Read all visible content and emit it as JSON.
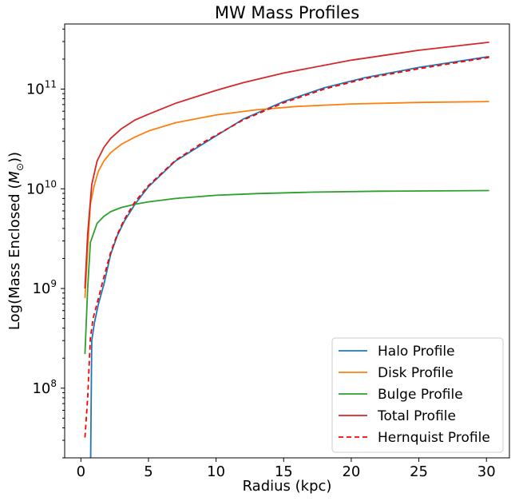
{
  "chart_data": {
    "type": "line",
    "title": "MW Mass Profiles",
    "xlabel": "Radius (kpc)",
    "ylabel_prefix": "Log(Mass Enclosed (",
    "ylabel_symbol": "M",
    "ylabel_subscript": "⊙",
    "ylabel_suffix": "))",
    "xlim": [
      -1.2,
      31.7
    ],
    "ylim": [
      20000000.0,
      450000000000.0
    ],
    "yscale": "log",
    "x_ticks": [
      0,
      5,
      10,
      15,
      20,
      25,
      30
    ],
    "x_tick_labels": [
      "0",
      "5",
      "10",
      "15",
      "20",
      "25",
      "30"
    ],
    "y_ticks": [
      {
        "value": 100000000.0,
        "base": "10",
        "exp": "8"
      },
      {
        "value": 1000000000.0,
        "base": "10",
        "exp": "9"
      },
      {
        "value": 10000000000.0,
        "base": "10",
        "exp": "10"
      },
      {
        "value": 100000000000.0,
        "base": "10",
        "exp": "11"
      }
    ],
    "legend_location": "lower right",
    "series": [
      {
        "name": "Halo Profile",
        "color": "#1f77b4",
        "dash": "",
        "x": [
          0.7,
          0.8,
          1.0,
          1.3,
          1.7,
          2.2,
          2.7,
          3.2,
          4.0,
          5.0,
          7.0,
          9.0,
          12.0,
          15.0,
          18.0,
          21.0,
          25.0,
          30.2
        ],
        "y": [
          10000000.0,
          300000000.0,
          450000000.0,
          700000000.0,
          1100000000.0,
          2200000000.0,
          3400000000.0,
          4700000000.0,
          7000000000.0,
          10500000000.0,
          19000000000.0,
          28000000000.0,
          50000000000.0,
          75000000000.0,
          103000000000.0,
          130000000000.0,
          165000000000.0,
          212000000000.0
        ]
      },
      {
        "name": "Disk Profile",
        "color": "#ff7f0e",
        "dash": "",
        "x": [
          0.3,
          0.5,
          0.7,
          1.0,
          1.3,
          1.7,
          2.2,
          3.0,
          4.0,
          5.0,
          7.0,
          10.0,
          13.0,
          16.0,
          20.0,
          25.0,
          30.2
        ],
        "y": [
          800000000.0,
          2500000000.0,
          7000000000.0,
          11000000000.0,
          15000000000.0,
          19000000000.0,
          23000000000.0,
          28000000000.0,
          33000000000.0,
          38000000000.0,
          46000000000.0,
          55000000000.0,
          62000000000.0,
          67000000000.0,
          71000000000.0,
          73500000000.0,
          75000000000.0
        ]
      },
      {
        "name": "Bulge Profile",
        "color": "#2ca02c",
        "dash": "",
        "x": [
          0.3,
          0.5,
          0.7,
          1.2,
          1.7,
          2.2,
          3.0,
          4.0,
          5.0,
          7.0,
          10.0,
          13.0,
          17.0,
          22.0,
          30.2
        ],
        "y": [
          220000000.0,
          1000000000.0,
          2900000000.0,
          4500000000.0,
          5300000000.0,
          5900000000.0,
          6500000000.0,
          7000000000.0,
          7400000000.0,
          8000000000.0,
          8600000000.0,
          8950000000.0,
          9250000000.0,
          9450000000.0,
          9600000000.0
        ]
      },
      {
        "name": "Total Profile",
        "color": "#d62728",
        "dash": "",
        "x": [
          0.3,
          0.5,
          0.8,
          1.2,
          1.7,
          2.2,
          3.0,
          4.0,
          5.0,
          7.0,
          10.0,
          12.0,
          15.0,
          20.0,
          25.0,
          30.2
        ],
        "y": [
          1000000000.0,
          3500000000.0,
          11000000000.0,
          19000000000.0,
          26000000000.0,
          32000000000.0,
          40000000000.0,
          49000000000.0,
          56000000000.0,
          72000000000.0,
          97000000000.0,
          116000000000.0,
          145000000000.0,
          195000000000.0,
          245000000000.0,
          295000000000.0
        ]
      },
      {
        "name": "Hernquist Profile",
        "color": "#ff0000",
        "dash": "6,4",
        "x": [
          0.3,
          0.5,
          0.7,
          0.9,
          1.3,
          1.7,
          2.2,
          2.7,
          3.2,
          4.0,
          5.0,
          7.0,
          9.0,
          12.0,
          15.0,
          18.0,
          21.0,
          25.0,
          30.2
        ],
        "y": [
          32000000.0,
          80000000.0,
          320000000.0,
          500000000.0,
          800000000.0,
          1300000000.0,
          2300000000.0,
          3500000000.0,
          4900000000.0,
          7400000000.0,
          10800000000.0,
          19300000000.0,
          29000000000.0,
          49000000000.0,
          73000000000.0,
          100000000000.0,
          127000000000.0,
          160000000000.0,
          208000000000.0
        ]
      }
    ]
  }
}
